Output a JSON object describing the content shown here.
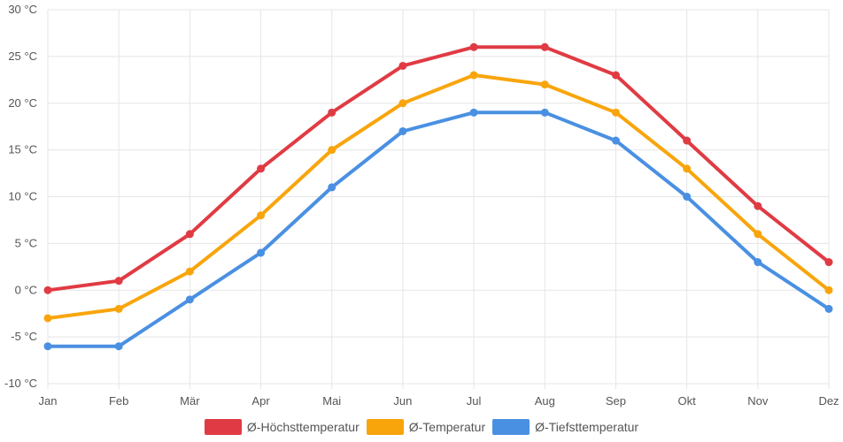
{
  "chart_data": {
    "type": "line",
    "title": "",
    "xlabel": "",
    "ylabel": "",
    "categories": [
      "Jan",
      "Feb",
      "Mär",
      "Apr",
      "Mai",
      "Jun",
      "Jul",
      "Aug",
      "Sep",
      "Okt",
      "Nov",
      "Dez"
    ],
    "ylim": [
      -10,
      30
    ],
    "y_ticks": [
      "30 °C",
      "25 °C",
      "20 °C",
      "15 °C",
      "10 °C",
      "5 °C",
      "0 °C",
      "-5 °C",
      "-10 °C"
    ],
    "grid": true,
    "legend_position": "bottom",
    "series": [
      {
        "name": "Ø-Höchsttemperatur",
        "color": "#e03b44",
        "values": [
          0,
          1,
          6,
          13,
          19,
          24,
          26,
          26,
          23,
          16,
          9,
          3
        ]
      },
      {
        "name": "Ø-Temperatur",
        "color": "#f8a50c",
        "values": [
          -3,
          -2,
          2,
          8,
          15,
          20,
          23,
          22,
          19,
          13,
          6,
          0
        ]
      },
      {
        "name": "Ø-Tiefsttemperatur",
        "color": "#4a90e2",
        "values": [
          -6,
          -6,
          -1,
          4,
          11,
          17,
          19,
          19,
          16,
          10,
          3,
          -2
        ]
      }
    ]
  }
}
